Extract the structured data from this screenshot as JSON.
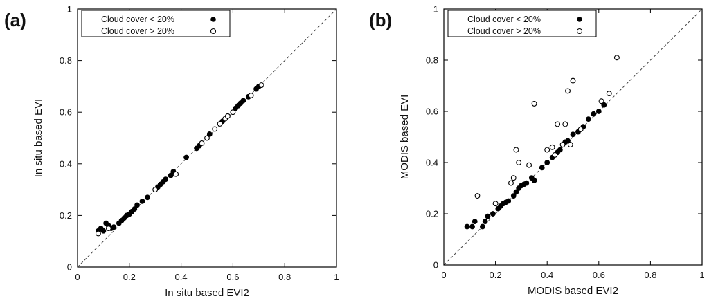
{
  "chart_data": [
    {
      "type": "scatter",
      "panel_label": "(a)",
      "xlabel": "In situ based EVI2",
      "ylabel": "In situ based EVI",
      "xlim": [
        0,
        1
      ],
      "ylim": [
        0,
        1
      ],
      "xticks": [
        "0",
        "0.2",
        "0.4",
        "0.6",
        "0.8",
        "1"
      ],
      "yticks": [
        "0",
        "0.2",
        "0.4",
        "0.6",
        "0.8",
        "1"
      ],
      "grid": false,
      "reference_line": "1:1 dashed",
      "legend_position": "top-left",
      "series": [
        {
          "name": "Cloud cover < 20%",
          "marker": "filled-circle",
          "points": [
            [
              0.08,
              0.14
            ],
            [
              0.09,
              0.15
            ],
            [
              0.1,
              0.14
            ],
            [
              0.11,
              0.17
            ],
            [
              0.12,
              0.16
            ],
            [
              0.13,
              0.15
            ],
            [
              0.14,
              0.155
            ],
            [
              0.16,
              0.17
            ],
            [
              0.17,
              0.18
            ],
            [
              0.18,
              0.19
            ],
            [
              0.19,
              0.2
            ],
            [
              0.2,
              0.205
            ],
            [
              0.21,
              0.215
            ],
            [
              0.22,
              0.225
            ],
            [
              0.23,
              0.24
            ],
            [
              0.25,
              0.255
            ],
            [
              0.27,
              0.27
            ],
            [
              0.31,
              0.31
            ],
            [
              0.32,
              0.32
            ],
            [
              0.33,
              0.33
            ],
            [
              0.34,
              0.34
            ],
            [
              0.36,
              0.355
            ],
            [
              0.37,
              0.37
            ],
            [
              0.42,
              0.425
            ],
            [
              0.46,
              0.46
            ],
            [
              0.47,
              0.47
            ],
            [
              0.51,
              0.515
            ],
            [
              0.56,
              0.565
            ],
            [
              0.61,
              0.615
            ],
            [
              0.62,
              0.625
            ],
            [
              0.63,
              0.635
            ],
            [
              0.64,
              0.645
            ],
            [
              0.66,
              0.66
            ],
            [
              0.69,
              0.69
            ],
            [
              0.7,
              0.7
            ]
          ]
        },
        {
          "name": "Cloud cover > 20%",
          "marker": "open-circle",
          "points": [
            [
              0.08,
              0.13
            ],
            [
              0.12,
              0.15
            ],
            [
              0.3,
              0.3
            ],
            [
              0.38,
              0.36
            ],
            [
              0.48,
              0.48
            ],
            [
              0.5,
              0.5
            ],
            [
              0.53,
              0.535
            ],
            [
              0.55,
              0.555
            ],
            [
              0.57,
              0.575
            ],
            [
              0.58,
              0.585
            ],
            [
              0.6,
              0.6
            ],
            [
              0.67,
              0.665
            ],
            [
              0.71,
              0.705
            ]
          ]
        }
      ]
    },
    {
      "type": "scatter",
      "panel_label": "(b)",
      "xlabel": "MODIS based EVI2",
      "ylabel": "MODIS based EVI",
      "xlim": [
        0,
        1
      ],
      "ylim": [
        0,
        1
      ],
      "xticks": [
        "0",
        "0.2",
        "0.4",
        "0.6",
        "0.8",
        "1"
      ],
      "yticks": [
        "0",
        "0.2",
        "0.4",
        "0.6",
        "0.8",
        "1"
      ],
      "grid": false,
      "reference_line": "1:1 dashed",
      "legend_position": "top-left",
      "series": [
        {
          "name": "Cloud cover < 20%",
          "marker": "filled-circle",
          "points": [
            [
              0.09,
              0.15
            ],
            [
              0.11,
              0.15
            ],
            [
              0.12,
              0.17
            ],
            [
              0.15,
              0.15
            ],
            [
              0.16,
              0.17
            ],
            [
              0.17,
              0.19
            ],
            [
              0.19,
              0.2
            ],
            [
              0.21,
              0.22
            ],
            [
              0.22,
              0.23
            ],
            [
              0.23,
              0.24
            ],
            [
              0.24,
              0.245
            ],
            [
              0.25,
              0.25
            ],
            [
              0.27,
              0.27
            ],
            [
              0.28,
              0.285
            ],
            [
              0.29,
              0.3
            ],
            [
              0.3,
              0.31
            ],
            [
              0.31,
              0.315
            ],
            [
              0.32,
              0.32
            ],
            [
              0.34,
              0.34
            ],
            [
              0.35,
              0.33
            ],
            [
              0.38,
              0.38
            ],
            [
              0.4,
              0.4
            ],
            [
              0.42,
              0.42
            ],
            [
              0.44,
              0.44
            ],
            [
              0.45,
              0.45
            ],
            [
              0.47,
              0.48
            ],
            [
              0.48,
              0.485
            ],
            [
              0.5,
              0.51
            ],
            [
              0.52,
              0.52
            ],
            [
              0.54,
              0.54
            ],
            [
              0.56,
              0.57
            ],
            [
              0.58,
              0.59
            ],
            [
              0.6,
              0.6
            ],
            [
              0.62,
              0.625
            ]
          ]
        },
        {
          "name": "Cloud cover > 20%",
          "marker": "open-circle",
          "points": [
            [
              0.13,
              0.27
            ],
            [
              0.2,
              0.24
            ],
            [
              0.26,
              0.32
            ],
            [
              0.27,
              0.34
            ],
            [
              0.28,
              0.45
            ],
            [
              0.29,
              0.4
            ],
            [
              0.33,
              0.39
            ],
            [
              0.35,
              0.63
            ],
            [
              0.4,
              0.45
            ],
            [
              0.42,
              0.46
            ],
            [
              0.43,
              0.43
            ],
            [
              0.44,
              0.55
            ],
            [
              0.46,
              0.47
            ],
            [
              0.47,
              0.55
            ],
            [
              0.48,
              0.68
            ],
            [
              0.49,
              0.47
            ],
            [
              0.5,
              0.72
            ],
            [
              0.53,
              0.53
            ],
            [
              0.61,
              0.64
            ],
            [
              0.64,
              0.67
            ],
            [
              0.67,
              0.81
            ]
          ]
        }
      ]
    }
  ]
}
